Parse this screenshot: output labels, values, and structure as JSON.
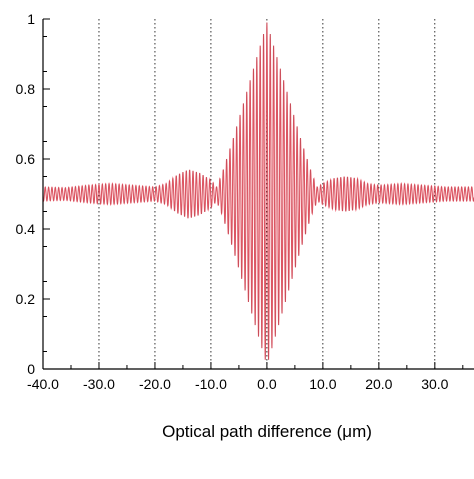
{
  "chart_data": {
    "type": "line",
    "title": "",
    "xlabel": "Optical path difference (μm)",
    "ylabel": "",
    "xlim": [
      -40,
      37
    ],
    "ylim": [
      0,
      1
    ],
    "x_ticks": [
      -40,
      -30,
      -20,
      -10,
      0,
      10,
      20,
      30
    ],
    "x_tick_labels": [
      "-40.0",
      "-30.0",
      "-20.0",
      "-10.0",
      "0.0",
      "10.0",
      "20.0",
      "30.0"
    ],
    "y_ticks": [
      0,
      0.2,
      0.4,
      0.6,
      0.8,
      1
    ],
    "y_tick_labels": [
      "0",
      "0.2",
      "0.4",
      "0.6",
      "0.8",
      "1"
    ],
    "vertical_grid": true,
    "grid_style": "dotted",
    "series": [
      {
        "color": "#f0606e",
        "baseline": 0.5,
        "fringe_period": 0.6,
        "envelope": {
          "x": [
            -40,
            -36,
            -32,
            -28,
            -24,
            -20,
            -18,
            -16,
            -14,
            -12,
            -10,
            -9,
            -8,
            -6,
            -4,
            -2,
            0,
            2,
            4,
            6,
            8,
            9,
            10,
            12,
            14,
            16,
            18,
            20,
            24,
            28,
            32,
            37
          ],
          "amplitude": [
            0.02,
            0.018,
            0.025,
            0.03,
            0.025,
            0.02,
            0.03,
            0.055,
            0.07,
            0.06,
            0.04,
            0.02,
            0.06,
            0.16,
            0.27,
            0.38,
            0.49,
            0.38,
            0.27,
            0.16,
            0.06,
            0.02,
            0.03,
            0.045,
            0.05,
            0.045,
            0.03,
            0.025,
            0.03,
            0.025,
            0.02,
            0.02
          ]
        }
      }
    ]
  }
}
